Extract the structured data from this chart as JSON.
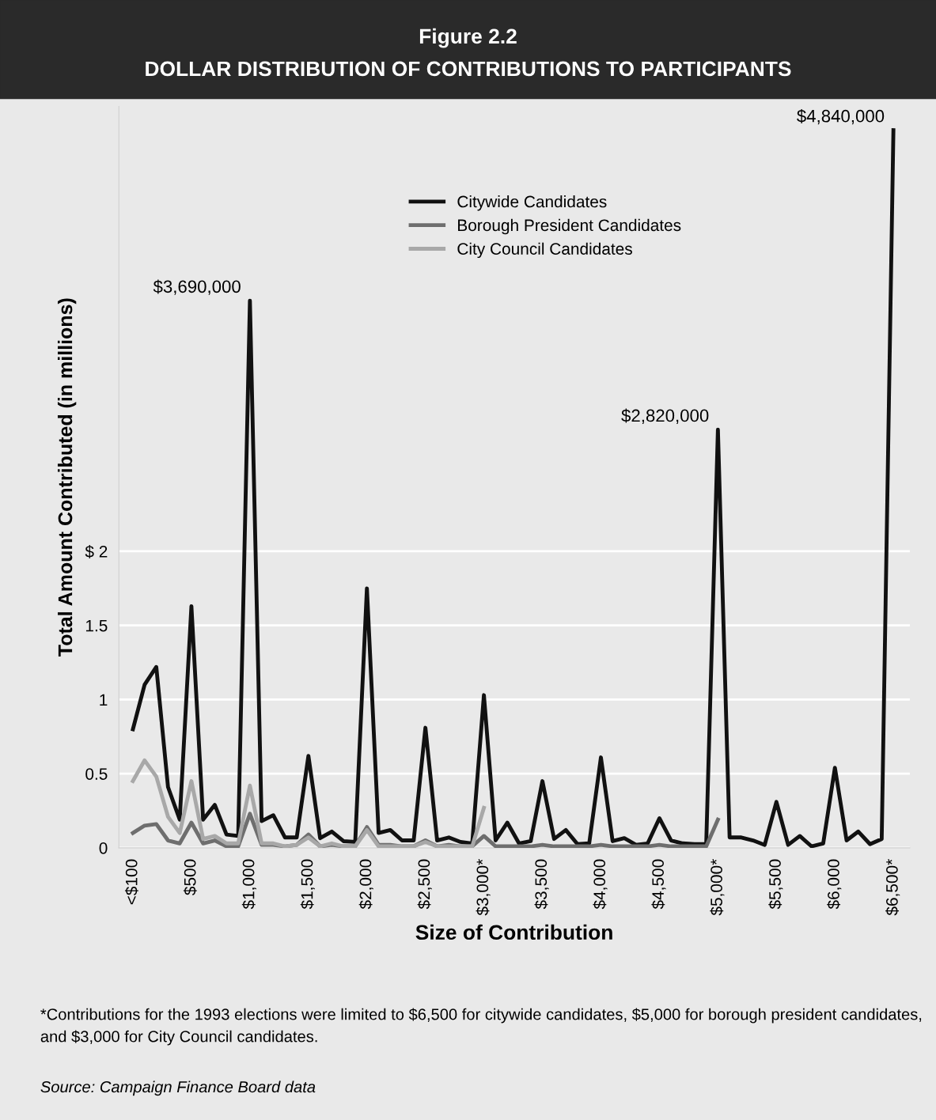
{
  "chart_data": {
    "type": "line",
    "title": "Figure 2.2",
    "subtitle": "DOLLAR DISTRIBUTION OF CONTRIBUTIONS TO PARTICIPANTS",
    "xlabel": "Size of Contribution",
    "ylabel": "Total Amount Contributed (in millions)",
    "x": [
      0,
      100,
      200,
      300,
      400,
      500,
      600,
      700,
      800,
      900,
      1000,
      1100,
      1200,
      1300,
      1400,
      1500,
      1600,
      1700,
      1800,
      1900,
      2000,
      2100,
      2200,
      2300,
      2400,
      2500,
      2600,
      2700,
      2800,
      2900,
      3000,
      3100,
      3200,
      3300,
      3400,
      3500,
      3600,
      3700,
      3800,
      3900,
      4000,
      4100,
      4200,
      4300,
      4400,
      4500,
      4600,
      4700,
      4800,
      4900,
      5000,
      5100,
      5200,
      5300,
      5400,
      5500,
      5600,
      5700,
      5800,
      5900,
      6000,
      6100,
      6200,
      6300,
      6400,
      6500
    ],
    "series": [
      {
        "name": "Citywide Candidates",
        "color": "#111111",
        "values": [
          0.8,
          1.1,
          1.22,
          0.41,
          0.19,
          1.63,
          0.19,
          0.29,
          0.09,
          0.08,
          3.69,
          0.18,
          0.22,
          0.07,
          0.07,
          0.62,
          0.065,
          0.11,
          0.045,
          0.04,
          1.75,
          0.1,
          0.12,
          0.05,
          0.05,
          0.81,
          0.05,
          0.07,
          0.04,
          0.03,
          1.03,
          0.05,
          0.17,
          0.03,
          0.045,
          0.45,
          0.06,
          0.12,
          0.025,
          0.03,
          0.61,
          0.045,
          0.065,
          0.02,
          0.03,
          0.2,
          0.05,
          0.03,
          0.025,
          0.025,
          2.82,
          0.07,
          0.07,
          0.05,
          0.02,
          0.31,
          0.02,
          0.08,
          0.01,
          0.03,
          0.54,
          0.05,
          0.11,
          0.025,
          0.06,
          4.84
        ]
      },
      {
        "name": "Borough President Candidates",
        "color": "#6e6e6e",
        "values": [
          0.1,
          0.15,
          0.16,
          0.05,
          0.03,
          0.17,
          0.03,
          0.05,
          0.01,
          0.01,
          0.23,
          0.02,
          0.02,
          0.01,
          0.02,
          0.09,
          0.01,
          0.02,
          0.01,
          0.01,
          0.14,
          0.02,
          0.02,
          0.01,
          0.01,
          0.05,
          0.01,
          0.02,
          0.01,
          0.01,
          0.08,
          0.01,
          0.01,
          0.01,
          0.01,
          0.02,
          0.01,
          0.01,
          0.01,
          0.01,
          0.02,
          0.01,
          0.01,
          0.01,
          0.01,
          0.02,
          0.01,
          0.01,
          0.01,
          0.01,
          0.19,
          null,
          null,
          null,
          null,
          null,
          null,
          null,
          null,
          null,
          null,
          null,
          null,
          null,
          null,
          null
        ]
      },
      {
        "name": "City Council Candidates",
        "color": "#a8a8a8",
        "values": [
          0.45,
          0.59,
          0.48,
          0.21,
          0.1,
          0.45,
          0.06,
          0.08,
          0.03,
          0.03,
          0.42,
          0.03,
          0.03,
          0.01,
          0.02,
          0.07,
          0.01,
          0.03,
          0.01,
          0.01,
          0.12,
          0.01,
          0.01,
          0.01,
          0.01,
          0.04,
          0.01,
          0.01,
          0.01,
          0.01,
          0.27,
          null,
          null,
          null,
          null,
          null,
          null,
          null,
          null,
          null,
          null,
          null,
          null,
          null,
          null,
          null,
          null,
          null,
          null,
          null,
          null,
          null,
          null,
          null,
          null,
          null,
          null,
          null,
          null,
          null,
          null,
          null,
          null,
          null,
          null,
          null
        ]
      }
    ],
    "xlim": [
      -120,
      6640
    ],
    "xticks": [
      {
        "value": 0,
        "label": "<$100"
      },
      {
        "value": 500,
        "label": "$500"
      },
      {
        "value": 1000,
        "label": "$1,000"
      },
      {
        "value": 1500,
        "label": "$1,500"
      },
      {
        "value": 2000,
        "label": "$2,000"
      },
      {
        "value": 2500,
        "label": "$2,500"
      },
      {
        "value": 3000,
        "label": "$3,000*"
      },
      {
        "value": 3500,
        "label": "$3,500"
      },
      {
        "value": 4000,
        "label": "$4,000"
      },
      {
        "value": 4500,
        "label": "$4,500"
      },
      {
        "value": 5000,
        "label": "$5,000*"
      },
      {
        "value": 5500,
        "label": "$5,500"
      },
      {
        "value": 6000,
        "label": "$6,000"
      },
      {
        "value": 6500,
        "label": "$6,500*"
      }
    ],
    "ylim": [
      0,
      5
    ],
    "yticks": [
      0,
      0.5,
      1,
      1.5,
      {
        "value": 2,
        "label": "$ 2"
      }
    ],
    "grid": "y",
    "legend": "top",
    "annotations": [
      {
        "text": "$3,690,000",
        "x": 1000,
        "y": 3.69
      },
      {
        "text": "$2,820,000",
        "x": 5000,
        "y": 2.82
      },
      {
        "text": "$4,840,000",
        "x": 6500,
        "y": 4.84
      },
      "*Contributions for the 1993 elections were limited to $6,500 for citywide candidates, $5,000 for borough president candidates, and $3,000 for City Council candidates.",
      "Source: Campaign Finance Board data"
    ]
  }
}
